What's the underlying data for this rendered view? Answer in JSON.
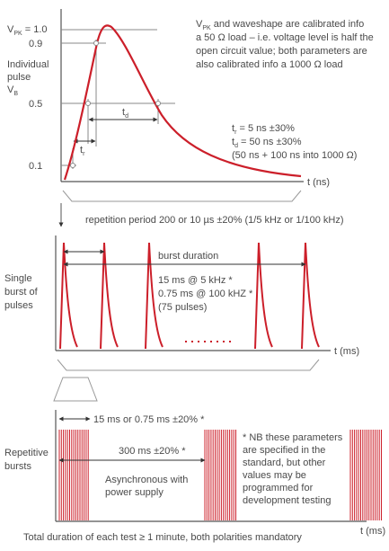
{
  "labels": {
    "vpk_main": "V",
    "vpk_sub": "PK",
    "vpk_eq": " = 1.0",
    "y09": "0.9",
    "y05": "0.5",
    "y01": "0.1",
    "individual": "Individual",
    "pulse": "pulse",
    "vb_main": "V",
    "vb_sub": "B",
    "tr_main": "t",
    "tr_sub": "r",
    "td_main": "t",
    "td_sub": "d",
    "t_ns": "t (ns)",
    "t_ms_1": "t (ms)",
    "t_ms_2": "t (ms)",
    "single1": "Single",
    "single2": "burst of",
    "single3": "pulses",
    "rep1": "Repetitive",
    "rep2": "bursts"
  },
  "notes": {
    "cal_line1_a": "V",
    "cal_line1_sub": "PK",
    "cal_line1_b": " and waveshape are calibrated info",
    "cal_line2": "a 50 Ω load – i.e. voltage level is half the",
    "cal_line3": "open circuit value; both parameters are",
    "cal_line4": "also calibrated info a 1000 Ω load",
    "tr_spec_a": "t",
    "tr_spec_sub": "r",
    "tr_spec_b": " = 5 ns ±30%",
    "td_spec_a": "t",
    "td_spec_sub": "d",
    "td_spec_b": " = 50 ns ±30%",
    "td_spec_2": "(50 ns + 100 ns into 1000 Ω)",
    "repetition": "repetition period 200 or 10 µs ±20% (1/5 kHz or 1/100 kHz)",
    "burst_duration": "burst duration",
    "burst_5k": "15 ms @ 5 kHz *",
    "burst_100k": "0.75 ms @ 100 kHZ *",
    "burst_pulses": "(75 pulses)",
    "burst_width": "15 ms or 0.75 ms ±20% *",
    "period_300": "300 ms ±20% *",
    "async1": "Asynchronous with",
    "async2": "power supply",
    "nb1": "* NB these parameters",
    "nb2": "are specified in the",
    "nb3": "standard, but other",
    "nb4": "values may be",
    "nb5": "programmed for",
    "nb6": "development testing",
    "footer": "Total duration of each test ≥ 1 minute, both polarities mandatory"
  },
  "colors": {
    "pulse": "#cc1f2a",
    "axis": "#555555",
    "text": "#4a4a4a",
    "guide": "#888888"
  }
}
